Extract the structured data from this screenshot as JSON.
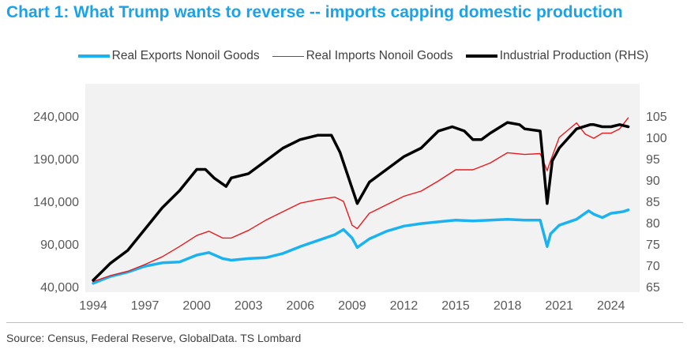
{
  "title": "Chart 1: What Trump wants to reverse -- imports capping domestic production",
  "source": "Source: Census, Federal Reserve, GlobalData. TS Lombard",
  "colors": {
    "title": "#1aa3e8",
    "exports": "#1ab2ef",
    "imports": "#e8191c",
    "production": "#000000",
    "plot_bg": "#f2f2f2"
  },
  "chart_data": {
    "type": "line",
    "title": "Chart 1: What Trump wants to reverse -- imports capping domestic production",
    "legend_position": "top",
    "grid": false,
    "x_ticks": [
      "1994",
      "1997",
      "2000",
      "2003",
      "2006",
      "2009",
      "2012",
      "2015",
      "2018",
      "2021",
      "2024"
    ],
    "xlim": [
      1994,
      2025.2
    ],
    "y_left": {
      "ticks": [
        "240,000",
        "190,000",
        "140,000",
        "90,000",
        "40,000"
      ],
      "ylim": [
        40000,
        240000
      ]
    },
    "y_right": {
      "label": "RHS",
      "ticks": [
        "105",
        "100",
        "95",
        "90",
        "85",
        "80",
        "75",
        "70",
        "65"
      ],
      "ylim": [
        65,
        105
      ]
    },
    "series": [
      {
        "name": "Real Exports Nonoil Goods",
        "axis": "left",
        "color": "#1ab2ef",
        "x": [
          1994,
          1995,
          1996,
          1997,
          1998,
          1999,
          2000,
          2000.7,
          2001.5,
          2002,
          2003,
          2004,
          2005,
          2006,
          2007,
          2008,
          2008.5,
          2009,
          2009.3,
          2010,
          2011,
          2012,
          2013,
          2014,
          2015,
          2016,
          2017,
          2018,
          2019,
          2019.9,
          2020.3,
          2020.5,
          2021,
          2022,
          2022.7,
          2023,
          2023.5,
          2024,
          2024.7,
          2025
        ],
        "y": [
          44000,
          52000,
          57000,
          64000,
          68000,
          69000,
          77000,
          80000,
          73000,
          71000,
          73000,
          74000,
          79000,
          87000,
          94000,
          101000,
          107000,
          97000,
          86000,
          96000,
          105000,
          111000,
          114000,
          116000,
          118000,
          117000,
          118000,
          119000,
          118000,
          118000,
          87000,
          102000,
          112000,
          119000,
          129000,
          125000,
          121000,
          126000,
          128000,
          130000
        ]
      },
      {
        "name": "Real Imports Nonoil Goods",
        "axis": "left",
        "color": "#e8191c",
        "x": [
          1994,
          1995,
          1996,
          1997,
          1998,
          1999,
          2000,
          2000.7,
          2001.5,
          2002,
          2003,
          2004,
          2005,
          2006,
          2007,
          2008,
          2008.5,
          2009,
          2009.3,
          2010,
          2011,
          2012,
          2013,
          2014,
          2015,
          2016,
          2017,
          2018,
          2019,
          2019.9,
          2020.3,
          2020.5,
          2021,
          2022,
          2022.5,
          2023,
          2023.5,
          2024,
          2024.5,
          2025
        ],
        "y": [
          46000,
          53000,
          58000,
          66000,
          75000,
          87000,
          100000,
          105000,
          97000,
          97000,
          106000,
          118000,
          128000,
          138000,
          142000,
          145000,
          140000,
          112000,
          108000,
          126000,
          136000,
          146000,
          152000,
          164000,
          177000,
          177000,
          185000,
          197000,
          195000,
          196000,
          176000,
          188000,
          215000,
          232000,
          219000,
          214000,
          220000,
          220000,
          225000,
          238000
        ]
      },
      {
        "name": "Industrial Production (RHS)",
        "axis": "right",
        "color": "#000000",
        "x": [
          1994,
          1995,
          1996,
          1997,
          1998,
          1999,
          2000,
          2000.5,
          2001,
          2001.7,
          2002,
          2003,
          2004,
          2005,
          2006,
          2007,
          2007.8,
          2008.3,
          2008.8,
          2009.3,
          2010,
          2011,
          2012,
          2013,
          2014,
          2014.8,
          2015.5,
          2016,
          2016.5,
          2017,
          2018,
          2018.7,
          2019,
          2019.9,
          2020.3,
          2020.6,
          2021,
          2022,
          2022.8,
          2023,
          2023.5,
          2024,
          2024.5,
          2025
        ],
        "y": [
          66.5,
          70.5,
          73.5,
          78.5,
          83.5,
          87.5,
          92.5,
          92.5,
          90.5,
          88.5,
          90.5,
          91.5,
          94.5,
          97.5,
          99.5,
          100.5,
          100.5,
          96.5,
          90.5,
          84.5,
          89.5,
          92.5,
          95.5,
          97.5,
          101.5,
          102.5,
          101.5,
          99.5,
          99.5,
          101.0,
          103.5,
          103.0,
          102.0,
          101.5,
          84.5,
          94.5,
          97.5,
          102.0,
          103.0,
          103.0,
          102.5,
          102.5,
          103.0,
          102.5
        ]
      }
    ]
  }
}
